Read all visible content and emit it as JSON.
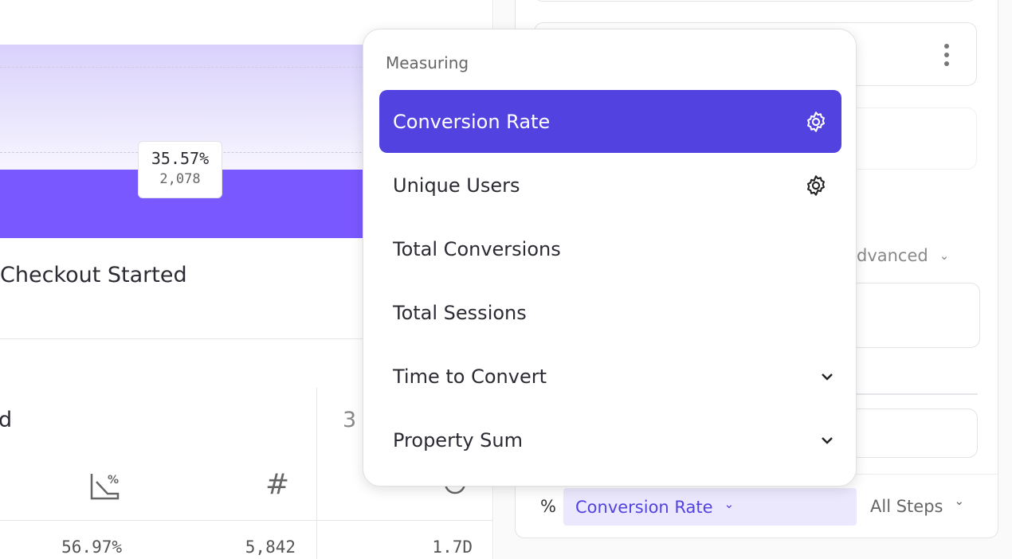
{
  "chart": {
    "tooltip_percent": "35.57%",
    "tooltip_count": "2,078",
    "step_label": "Checkout Started"
  },
  "table": {
    "col1_title_fragment": "d",
    "col2_title_fragment": "3",
    "values": [
      "56.97%",
      "5,842",
      "1.7D"
    ]
  },
  "menu": {
    "heading": "Measuring",
    "items": [
      {
        "label": "Conversion Rate",
        "selected": true,
        "icon": "gear-icon"
      },
      {
        "label": "Unique Users",
        "selected": false,
        "icon": "gear-icon"
      },
      {
        "label": "Total Conversions",
        "selected": false
      },
      {
        "label": "Total Sessions",
        "selected": false
      },
      {
        "label": "Time to Convert",
        "selected": false,
        "icon": "chevron-down-icon"
      },
      {
        "label": "Property Sum",
        "selected": false,
        "icon": "chevron-down-icon"
      }
    ]
  },
  "sidebar": {
    "advanced_label": "dvanced",
    "measure_prefix": "%",
    "measure_value": "Conversion Rate",
    "steps_value": "All Steps"
  },
  "colors": {
    "accent": "#5243e0",
    "bar": "#7958ff",
    "pill_bg": "#ebe8fd"
  }
}
